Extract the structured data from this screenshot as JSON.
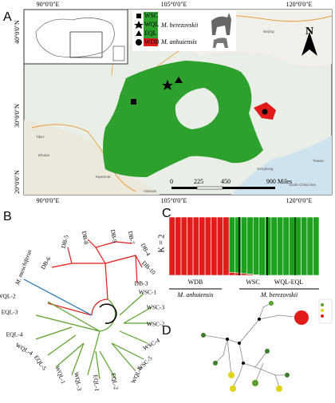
{
  "panel_labels": [
    "A",
    "B",
    "C",
    "D"
  ],
  "map": {
    "top_ticks": [
      "90°0'0\"E",
      "105°0'0\"E",
      "120°0'0\"E"
    ],
    "bottom_ticks": [
      "90°0'0\"E",
      "105°0'0\"E",
      "120°0'0\"E"
    ],
    "left_ticks": [
      "40°0'0\"N",
      "30°0'0\"N",
      "20°0'0\"N"
    ],
    "legend": {
      "items": [
        "WSC",
        "WQL",
        "EQL",
        "WDB"
      ],
      "species": [
        "M. berezovskii",
        "M. anhuiensis"
      ]
    },
    "north": "N",
    "scale": [
      "0",
      "225",
      "450",
      "900 Miles"
    ],
    "places": [
      "Tibet",
      "Bhutan",
      "Myanmar",
      "Hongkong",
      "Vietnam",
      "Taiwan",
      "South China Sea",
      "Beijing"
    ]
  },
  "tree": {
    "labels": [
      "DB-6",
      "DB-5",
      "DB-8",
      "DB-9",
      "DB-7",
      "DB-4",
      "DB-10",
      "DB-3",
      "M. moschiferus",
      "WQL-2",
      "EQL-3",
      "EQL-4",
      "WQL-4",
      "EQL-5",
      "WQL-1",
      "WQL-3",
      "EQL-1",
      "EQL-2",
      "WQL-5",
      "WSC-5",
      "WSC-4",
      "WSC-2",
      "WSC-3",
      "WSC-1"
    ]
  },
  "structure": {
    "k_label": "K = 2",
    "green_fraction": [
      0,
      0,
      0,
      0,
      0,
      0,
      0,
      0,
      0,
      0,
      0.95,
      0.96,
      0.97,
      0.98,
      0.99,
      1,
      1,
      1,
      1,
      1,
      1,
      1,
      1,
      1,
      1
    ],
    "groups": [
      "WDB",
      "WSC",
      "WQL-EQL"
    ],
    "species": [
      "M. anhuiensis",
      "M. berezovskii"
    ]
  }
}
